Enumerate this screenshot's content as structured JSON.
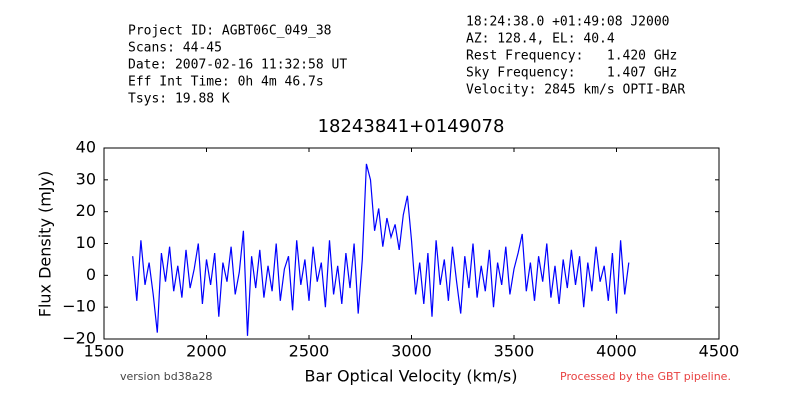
{
  "chart_data": {
    "type": "line",
    "title": "18243841+0149078",
    "header_left": [
      "Project ID: AGBT06C_049_38",
      "Scans: 44-45",
      "Date: 2007-02-16 11:32:58 UT",
      "Eff Int Time: 0h 4m 46.7s",
      "Tsys: 19.88 K"
    ],
    "header_right": [
      "18:24:38.0 +01:49:08 J2000",
      "AZ: 128.4, EL: 40.4",
      "Rest Frequency:   1.420 GHz",
      "Sky Frequency:    1.407 GHz",
      "Velocity: 2845 km/s OPTI-BAR"
    ],
    "xlabel": "Bar Optical Velocity (km/s)",
    "ylabel": "Flux Density (mJy)",
    "version": "version bd38a28",
    "pipeline_note": "Processed by the GBT pipeline.",
    "color": "#0000ff",
    "xlim": [
      1500,
      4500
    ],
    "ylim": [
      -20,
      40
    ],
    "xticks": [
      1500,
      2000,
      2500,
      3000,
      3500,
      4000,
      4500
    ],
    "yticks": [
      {
        "value": -20,
        "label": "−20"
      },
      {
        "value": -10,
        "label": "−10"
      },
      0,
      10,
      20,
      30,
      40
    ],
    "grid": false,
    "x": [
      1640,
      1660,
      1680,
      1700,
      1720,
      1740,
      1760,
      1780,
      1800,
      1820,
      1840,
      1860,
      1880,
      1900,
      1920,
      1940,
      1960,
      1980,
      2000,
      2020,
      2040,
      2060,
      2080,
      2100,
      2120,
      2140,
      2160,
      2180,
      2200,
      2220,
      2240,
      2260,
      2280,
      2300,
      2320,
      2340,
      2360,
      2380,
      2400,
      2420,
      2440,
      2460,
      2480,
      2500,
      2520,
      2540,
      2560,
      2580,
      2600,
      2620,
      2640,
      2660,
      2680,
      2700,
      2720,
      2740,
      2760,
      2780,
      2800,
      2820,
      2840,
      2860,
      2880,
      2900,
      2920,
      2940,
      2960,
      2980,
      3000,
      3020,
      3040,
      3060,
      3080,
      3100,
      3120,
      3140,
      3160,
      3180,
      3200,
      3220,
      3240,
      3260,
      3280,
      3300,
      3320,
      3340,
      3360,
      3380,
      3400,
      3420,
      3440,
      3460,
      3480,
      3500,
      3520,
      3540,
      3560,
      3580,
      3600,
      3620,
      3640,
      3660,
      3680,
      3700,
      3720,
      3740,
      3760,
      3780,
      3800,
      3820,
      3840,
      3860,
      3880,
      3900,
      3920,
      3940,
      3960,
      3980,
      4000,
      4020,
      4040,
      4060
    ],
    "values": [
      6,
      -8,
      11,
      -3,
      4,
      -6,
      -18,
      7,
      -2,
      9,
      -5,
      3,
      -7,
      8,
      -4,
      2,
      10,
      -9,
      5,
      -3,
      7,
      -13,
      4,
      -2,
      9,
      -6,
      1,
      14,
      -19,
      6,
      -4,
      8,
      -7,
      3,
      -5,
      10,
      -8,
      2,
      6,
      -11,
      11,
      -3,
      5,
      -8,
      9,
      -2,
      4,
      -10,
      11,
      -6,
      3,
      -9,
      7,
      -4,
      10,
      -12,
      5,
      35,
      30,
      14,
      21,
      9,
      18,
      12,
      16,
      8,
      19,
      25,
      11,
      -6,
      4,
      -9,
      7,
      -13,
      11,
      -3,
      5,
      -8,
      9,
      -2,
      -12,
      6,
      -4,
      10,
      -7,
      3,
      -5,
      8,
      -10,
      4,
      -3,
      9,
      -6,
      2,
      7,
      13,
      -5,
      4,
      -8,
      6,
      -2,
      10,
      -7,
      3,
      -9,
      5,
      -4,
      8,
      -3,
      6,
      -10,
      4,
      -5,
      9,
      -2,
      3,
      -8,
      7,
      -12,
      11,
      -6,
      4
    ]
  }
}
